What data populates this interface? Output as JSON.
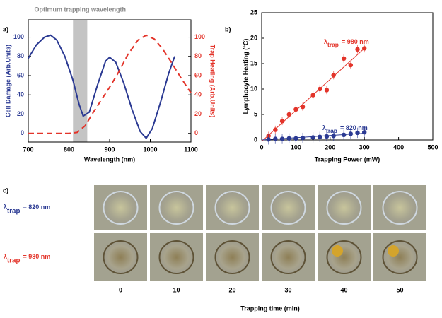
{
  "chart_data": [
    {
      "type": "line",
      "panel_label": "a)",
      "xlabel": "Wavelength (nm)",
      "ylabel": "Cell Damage (Arb.Units)",
      "y2label": "Trap Heating (Arb.Units)",
      "xlim": [
        700,
        1100
      ],
      "xticks": [
        700,
        800,
        900,
        1000,
        1100
      ],
      "ylim": [
        -9,
        118
      ],
      "yticks": [
        0,
        20,
        40,
        60,
        80,
        100
      ],
      "y2lim": [
        -9,
        118
      ],
      "y2ticks": [
        0,
        20,
        40,
        60,
        80,
        100
      ],
      "shade": {
        "x": [
          810,
          845
        ],
        "color": "#c4c4c4",
        "label": "Optimum trapping wavelength"
      },
      "series": [
        {
          "color": "#2b3a93",
          "linestyle": "solid",
          "axis": "y",
          "x": [
            700,
            720,
            740,
            755,
            770,
            790,
            810,
            825,
            835,
            850,
            870,
            890,
            900,
            915,
            935,
            955,
            975,
            990,
            1005,
            1025,
            1045,
            1060
          ],
          "values": [
            78,
            92,
            100,
            102,
            97,
            80,
            55,
            30,
            18,
            22,
            50,
            75,
            79,
            74,
            52,
            25,
            2,
            -5,
            5,
            32,
            62,
            80
          ]
        },
        {
          "color": "#e3342a",
          "linestyle": "dashed",
          "axis": "y2",
          "x": [
            700,
            760,
            800,
            820,
            840,
            860,
            880,
            900,
            920,
            945,
            970,
            990,
            1010,
            1030,
            1050,
            1075,
            1100
          ],
          "values": [
            0,
            0,
            0,
            1,
            8,
            22,
            35,
            48,
            62,
            82,
            97,
            102,
            98,
            88,
            75,
            58,
            42
          ]
        }
      ]
    },
    {
      "type": "scatter",
      "panel_label": "b)",
      "xlabel": "Trapping Power (mW)",
      "ylabel": "Lymphocyte Heating (°C)",
      "xlim": [
        0,
        500
      ],
      "xticks": [
        0,
        100,
        200,
        300,
        400,
        500
      ],
      "ylim": [
        0,
        25
      ],
      "yticks": [
        0,
        5,
        10,
        15,
        20,
        25
      ],
      "series": [
        {
          "color": "#e3342a",
          "x": [
            20,
            40,
            60,
            80,
            100,
            120,
            150,
            170,
            190,
            210,
            240,
            260,
            280,
            300
          ],
          "values": [
            0.8,
            2,
            3.7,
            5,
            6,
            6.5,
            8.8,
            10,
            9.8,
            12.7,
            16,
            14.7,
            17.8,
            18
          ],
          "errors": [
            0.8,
            0.8,
            0.8,
            0.8,
            0.8,
            0.8,
            0.8,
            0.8,
            0.8,
            0.8,
            0.8,
            0.8,
            0.8,
            0.8
          ],
          "fit_x": [
            0,
            300
          ],
          "fit_values": [
            -0.3,
            18
          ],
          "annotation": {
            "symbol": "λ",
            "subscript": "trap",
            "text": "= 980 nm"
          }
        },
        {
          "color": "#2b3a93",
          "x": [
            20,
            40,
            60,
            80,
            100,
            120,
            150,
            170,
            190,
            210,
            240,
            260,
            280,
            300
          ],
          "values": [
            0.1,
            0.2,
            0.2,
            0.3,
            0.3,
            0.4,
            0.5,
            0.6,
            0.7,
            0.8,
            1,
            1.2,
            1.4,
            1.5
          ],
          "errors": [
            1,
            1,
            1,
            1,
            1,
            1,
            1,
            1,
            1,
            1,
            1,
            1,
            1,
            1
          ],
          "fit_x": [
            0,
            300
          ],
          "fit_values": [
            0,
            1.3
          ],
          "annotation": {
            "symbol": "λ",
            "subscript": "trap",
            "text": "= 820 nm"
          }
        }
      ]
    }
  ],
  "panel_c": {
    "panel_label": "c)",
    "rows": [
      {
        "symbol": "λ",
        "subscript": "trap",
        "text": "= 820 nm",
        "color": "#2b3a93"
      },
      {
        "symbol": "λ",
        "subscript": "trap",
        "text": "= 980 nm",
        "color": "#e3342a"
      }
    ],
    "columns": [
      "0",
      "10",
      "20",
      "30",
      "40",
      "50"
    ],
    "xlabel": "Trapping time (min)"
  }
}
